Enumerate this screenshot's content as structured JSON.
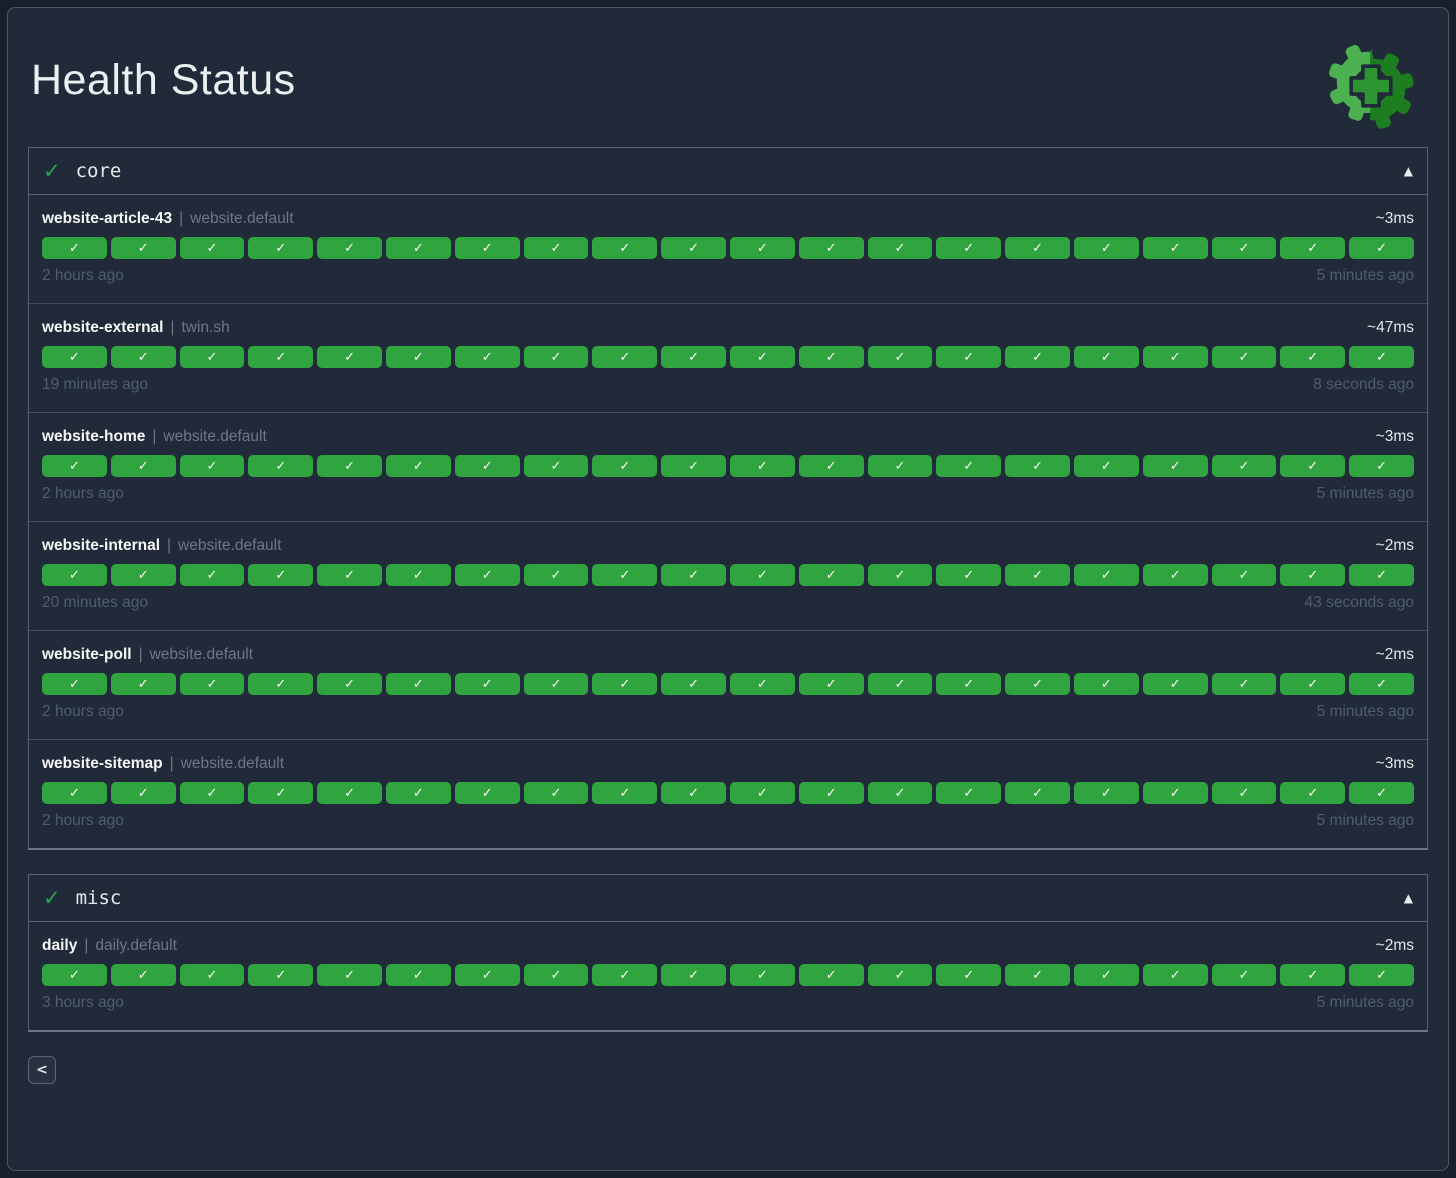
{
  "header": {
    "title": "Health Status"
  },
  "logo": {
    "name": "health-gear-logo",
    "light_green": "#4db151",
    "dark_green": "#1d7d21",
    "plus_green": "#2c9430"
  },
  "colors": {
    "page_bg": "#18202c",
    "panel_bg": "#212a38",
    "pill_ok_green": "#30a43e",
    "section_check_green": "#27a452",
    "border": "#5a6371",
    "muted_text": "#6d7787",
    "timestamp_text": "#505c6e"
  },
  "icons": {
    "section_ok": "✓",
    "collapse": "▲",
    "pill_ok": "✓"
  },
  "labels": {
    "separator": "|"
  },
  "pager": {
    "prev_label": "<"
  },
  "sections": [
    {
      "label": "core",
      "status": "ok",
      "checks": [
        {
          "name": "website-article-43",
          "target": "website.default",
          "latency": "~3ms",
          "oldest": "2 hours ago",
          "newest": "5 minutes ago",
          "history": [
            "ok",
            "ok",
            "ok",
            "ok",
            "ok",
            "ok",
            "ok",
            "ok",
            "ok",
            "ok",
            "ok",
            "ok",
            "ok",
            "ok",
            "ok",
            "ok",
            "ok",
            "ok",
            "ok",
            "ok"
          ]
        },
        {
          "name": "website-external",
          "target": "twin.sh",
          "latency": "~47ms",
          "oldest": "19 minutes ago",
          "newest": "8 seconds ago",
          "history": [
            "ok",
            "ok",
            "ok",
            "ok",
            "ok",
            "ok",
            "ok",
            "ok",
            "ok",
            "ok",
            "ok",
            "ok",
            "ok",
            "ok",
            "ok",
            "ok",
            "ok",
            "ok",
            "ok",
            "ok"
          ]
        },
        {
          "name": "website-home",
          "target": "website.default",
          "latency": "~3ms",
          "oldest": "2 hours ago",
          "newest": "5 minutes ago",
          "history": [
            "ok",
            "ok",
            "ok",
            "ok",
            "ok",
            "ok",
            "ok",
            "ok",
            "ok",
            "ok",
            "ok",
            "ok",
            "ok",
            "ok",
            "ok",
            "ok",
            "ok",
            "ok",
            "ok",
            "ok"
          ]
        },
        {
          "name": "website-internal",
          "target": "website.default",
          "latency": "~2ms",
          "oldest": "20 minutes ago",
          "newest": "43 seconds ago",
          "history": [
            "ok",
            "ok",
            "ok",
            "ok",
            "ok",
            "ok",
            "ok",
            "ok",
            "ok",
            "ok",
            "ok",
            "ok",
            "ok",
            "ok",
            "ok",
            "ok",
            "ok",
            "ok",
            "ok",
            "ok"
          ]
        },
        {
          "name": "website-poll",
          "target": "website.default",
          "latency": "~2ms",
          "oldest": "2 hours ago",
          "newest": "5 minutes ago",
          "history": [
            "ok",
            "ok",
            "ok",
            "ok",
            "ok",
            "ok",
            "ok",
            "ok",
            "ok",
            "ok",
            "ok",
            "ok",
            "ok",
            "ok",
            "ok",
            "ok",
            "ok",
            "ok",
            "ok",
            "ok"
          ]
        },
        {
          "name": "website-sitemap",
          "target": "website.default",
          "latency": "~3ms",
          "oldest": "2 hours ago",
          "newest": "5 minutes ago",
          "history": [
            "ok",
            "ok",
            "ok",
            "ok",
            "ok",
            "ok",
            "ok",
            "ok",
            "ok",
            "ok",
            "ok",
            "ok",
            "ok",
            "ok",
            "ok",
            "ok",
            "ok",
            "ok",
            "ok",
            "ok"
          ]
        }
      ]
    },
    {
      "label": "misc",
      "status": "ok",
      "checks": [
        {
          "name": "daily",
          "target": "daily.default",
          "latency": "~2ms",
          "oldest": "3 hours ago",
          "newest": "5 minutes ago",
          "history": [
            "ok",
            "ok",
            "ok",
            "ok",
            "ok",
            "ok",
            "ok",
            "ok",
            "ok",
            "ok",
            "ok",
            "ok",
            "ok",
            "ok",
            "ok",
            "ok",
            "ok",
            "ok",
            "ok",
            "ok"
          ]
        }
      ]
    }
  ]
}
